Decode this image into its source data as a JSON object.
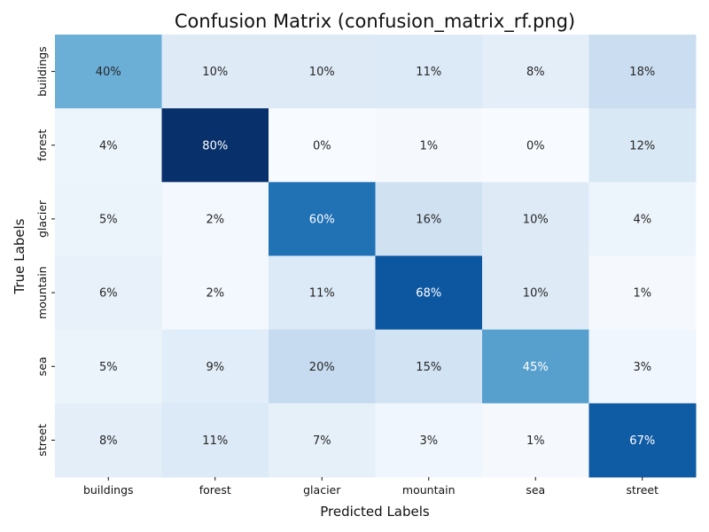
{
  "chart_data": {
    "type": "heatmap",
    "title": "Confusion Matrix (confusion_matrix_rf.png)",
    "xlabel": "Predicted Labels",
    "ylabel": "True Labels",
    "x_categories": [
      "buildings",
      "forest",
      "glacier",
      "mountain",
      "sea",
      "street"
    ],
    "y_categories": [
      "buildings",
      "forest",
      "glacier",
      "mountain",
      "sea",
      "street"
    ],
    "values": [
      [
        40,
        10,
        10,
        11,
        8,
        18
      ],
      [
        4,
        80,
        0,
        1,
        0,
        12
      ],
      [
        5,
        2,
        60,
        16,
        10,
        4
      ],
      [
        6,
        2,
        11,
        68,
        10,
        1
      ],
      [
        5,
        9,
        20,
        15,
        45,
        3
      ],
      [
        8,
        11,
        7,
        3,
        1,
        67
      ]
    ],
    "value_suffix": "%",
    "colormap": "Blues",
    "colorbar": false,
    "range": [
      0,
      80
    ]
  }
}
